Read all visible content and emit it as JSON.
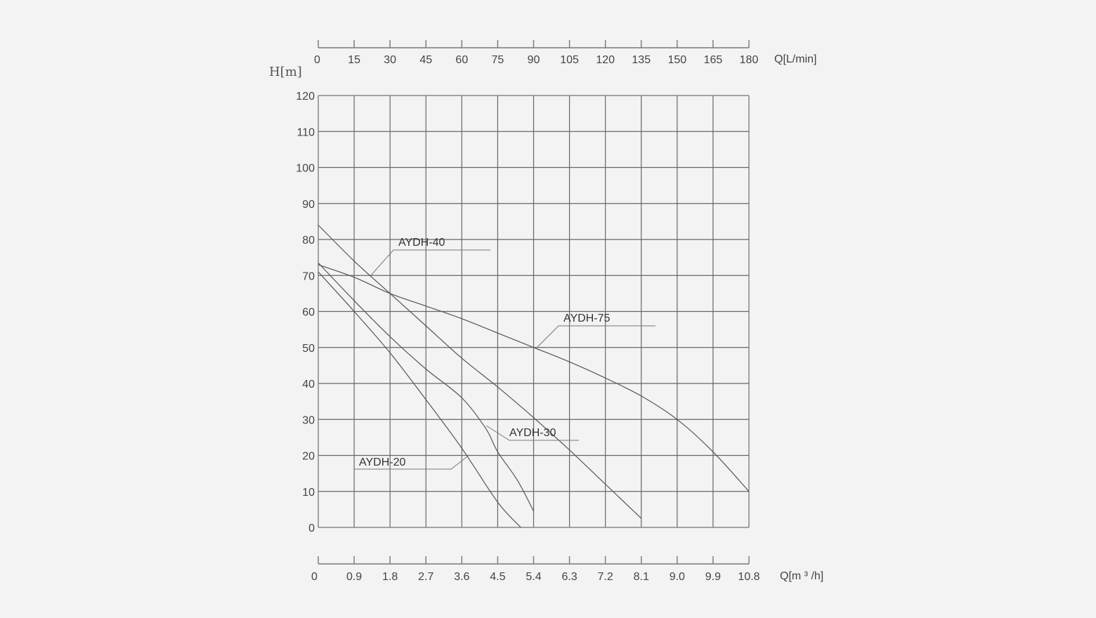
{
  "chart_data": {
    "type": "line",
    "title": "",
    "ylabel": "H[m]",
    "xlabel_bottom": "Q[m ³ /h]",
    "xlabel_top": "Q[L/min]",
    "ylim": [
      0,
      120
    ],
    "xlim": [
      0,
      10.8
    ],
    "grid": true,
    "legend_position": "inline leader labels",
    "y_ticks": [
      "0",
      "10",
      "20",
      "30",
      "40",
      "50",
      "60",
      "70",
      "80",
      "90",
      "100",
      "110",
      "120"
    ],
    "x_ticks_bottom": [
      "0",
      "0.9",
      "1.8",
      "2.7",
      "3.6",
      "4.5",
      "5.4",
      "6.3",
      "7.2",
      "8.1",
      "9.0",
      "9.9",
      "10.8"
    ],
    "x_ticks_top": [
      "0",
      "15",
      "30",
      "45",
      "60",
      "75",
      "90",
      "105",
      "120",
      "135",
      "150",
      "165",
      "180"
    ],
    "series": [
      {
        "name": "AYDH-20",
        "x": [
          0,
          0.9,
          1.8,
          2.7,
          3.6,
          4.5,
          5.08
        ],
        "y": [
          71,
          60,
          48.5,
          35.5,
          22,
          7,
          0
        ]
      },
      {
        "name": "AYDH-30",
        "x": [
          0,
          0.9,
          1.8,
          2.7,
          3.6,
          4.2,
          4.5,
          5.0,
          5.4
        ],
        "y": [
          73.5,
          63,
          53,
          44,
          36,
          27.5,
          21,
          13,
          4.5
        ]
      },
      {
        "name": "AYDH-40",
        "x": [
          0,
          0.9,
          1.8,
          2.7,
          3.6,
          4.5,
          5.4,
          6.3,
          7.2,
          8.1
        ],
        "y": [
          84,
          74,
          65,
          56,
          47,
          39,
          30.5,
          21.5,
          12,
          2.5
        ]
      },
      {
        "name": "AYDH-75",
        "x": [
          0,
          0.9,
          1.8,
          2.7,
          3.6,
          4.5,
          5.4,
          6.3,
          7.2,
          8.1,
          9.0,
          9.9,
          10.8
        ],
        "y": [
          73,
          69.5,
          65,
          61.5,
          58,
          54,
          50,
          46,
          41.5,
          36.5,
          30,
          21,
          10
        ]
      }
    ],
    "annotations": [
      {
        "text": "AYDH-40",
        "points_to": [
          1.35,
          70
        ]
      },
      {
        "text": "AYDH-75",
        "points_to": [
          5.4,
          50
        ]
      },
      {
        "text": "AYDH-30",
        "points_to": [
          4.2,
          28
        ]
      },
      {
        "text": "AYDH-20",
        "points_to": [
          3.8,
          20
        ]
      }
    ]
  },
  "labels": {
    "y_axis_title": "H[m]",
    "top_axis_title": "Q[L/min]",
    "bottom_axis_title": "Q[m ³ /h]",
    "curve_aydh_40": "AYDH-40",
    "curve_aydh_75": "AYDH-75",
    "curve_aydh_30": "AYDH-30",
    "curve_aydh_20": "AYDH-20"
  }
}
